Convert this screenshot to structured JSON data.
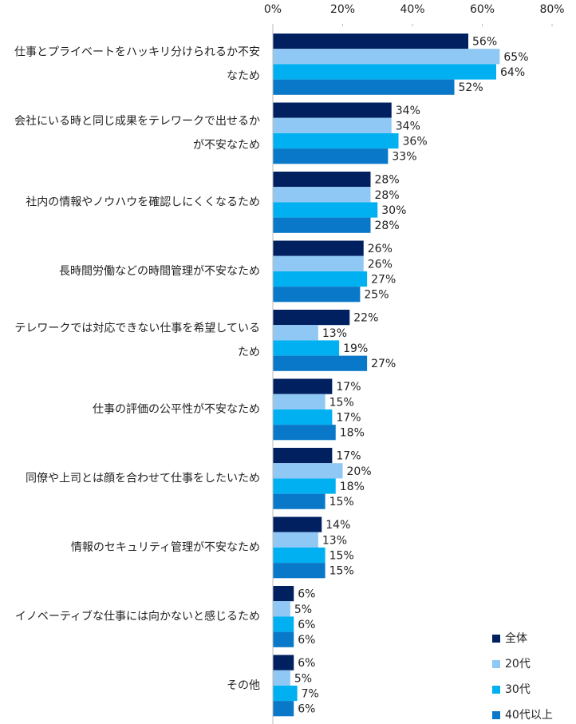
{
  "chart_data": {
    "type": "hbar_grouped",
    "categories": [
      [
        "仕事とプライベートをハッキリ分けられるか不安",
        "なため"
      ],
      [
        "会社にいる時と同じ成果をテレワークで出せるか",
        "が不安なため"
      ],
      [
        "社内の情報やノウハウを確認しにくくなるため"
      ],
      [
        "長時間労働などの時間管理が不安なため"
      ],
      [
        "テレワークでは対応できない仕事を希望している",
        "ため"
      ],
      [
        "仕事の評価の公平性が不安なため"
      ],
      [
        "同僚や上司とは顔を合わせて仕事をしたいため"
      ],
      [
        "情報のセキュリティ管理が不安なため"
      ],
      [
        "イノベーティブな仕事には向かないと感じるため"
      ],
      [
        "その他"
      ]
    ],
    "series": [
      {
        "name": "全体",
        "color": "#002060",
        "values": [
          56,
          34,
          28,
          26,
          22,
          17,
          17,
          14,
          6,
          6
        ],
        "value_labels": [
          "56%",
          "34%",
          "28%",
          "26%",
          "22%",
          "17%",
          "17%",
          "14%",
          "6%",
          "6%"
        ]
      },
      {
        "name": "20代",
        "color": "#8fc8f5",
        "values": [
          65,
          34,
          28,
          26,
          13,
          15,
          20,
          13,
          5,
          5
        ],
        "value_labels": [
          "65%",
          "34%",
          "28%",
          "26%",
          "13%",
          "15%",
          "20%",
          "13%",
          "5%",
          "5%"
        ]
      },
      {
        "name": "30代",
        "color": "#00b0f0",
        "values": [
          64,
          36,
          30,
          27,
          19,
          17,
          18,
          15,
          6,
          7
        ],
        "value_labels": [
          "64%",
          "36%",
          "30%",
          "27%",
          "19%",
          "17%",
          "18%",
          "15%",
          "6%",
          "7%"
        ]
      },
      {
        "name": "40代以上",
        "color": "#0a78c8",
        "values": [
          52,
          33,
          28,
          25,
          27,
          18,
          15,
          15,
          6,
          6
        ],
        "value_labels": [
          "52%",
          "33%",
          "28%",
          "25%",
          "27%",
          "18%",
          "15%",
          "15%",
          "6%",
          "6%"
        ]
      }
    ],
    "xlim": [
      0,
      80
    ],
    "xticks": [
      {
        "value": 0,
        "label": "0%"
      },
      {
        "value": 20,
        "label": "20%"
      },
      {
        "value": 40,
        "label": "40%"
      },
      {
        "value": 60,
        "label": "60%"
      },
      {
        "value": 80,
        "label": "80%"
      }
    ],
    "legend": "lower right"
  }
}
